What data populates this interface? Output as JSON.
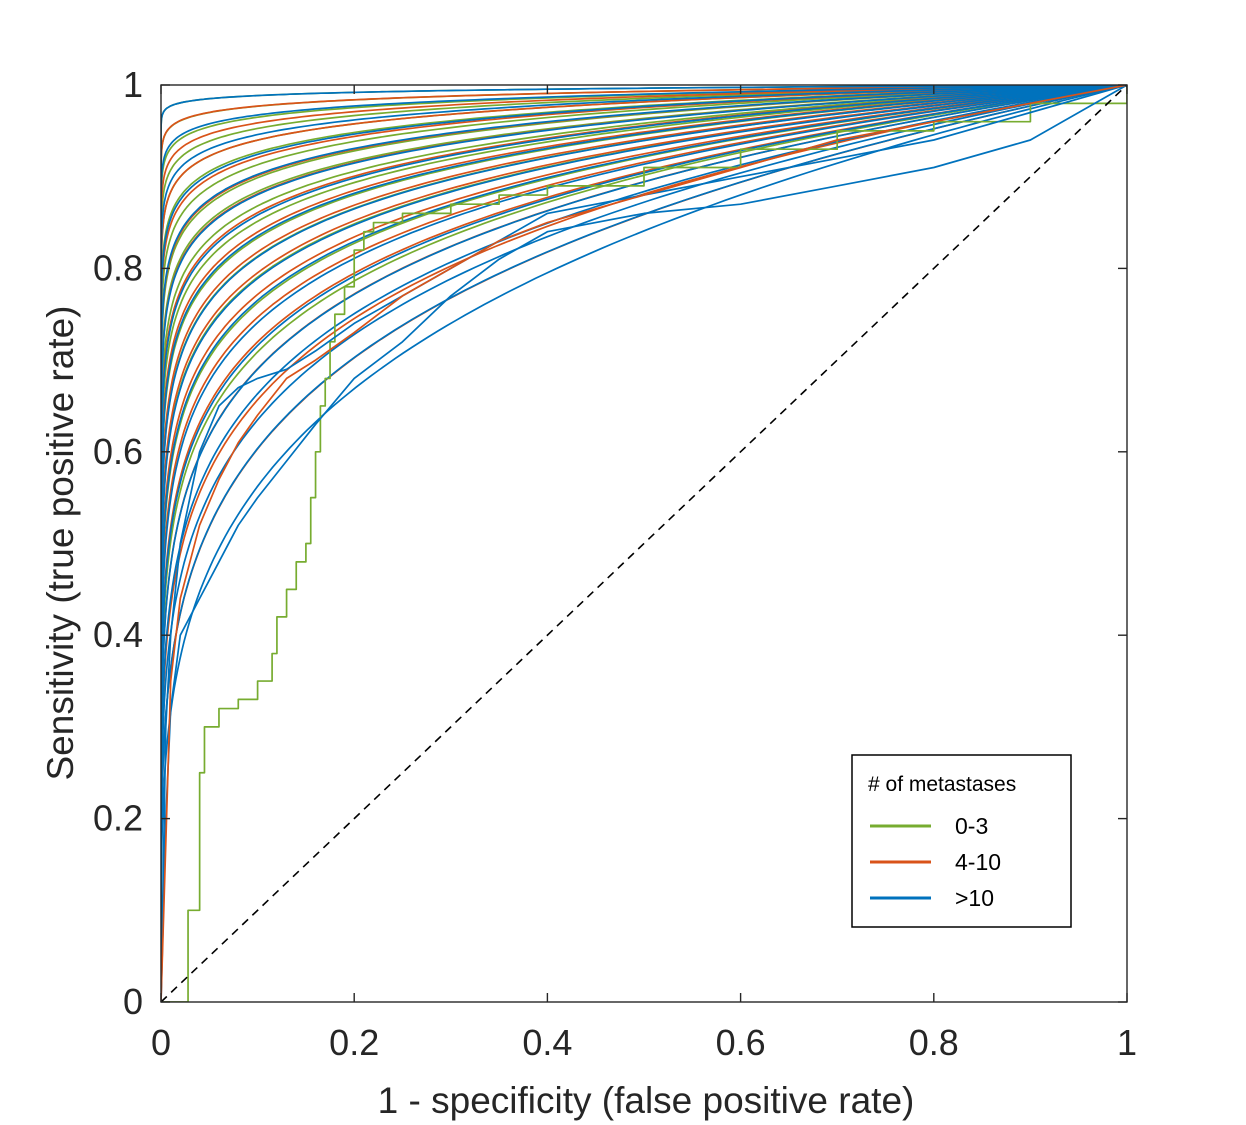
{
  "chart_data": {
    "type": "line",
    "title": "",
    "xlabel": "1 - specificity (false positive rate)",
    "ylabel": "Sensitivity (true positive rate)",
    "xlim": [
      0,
      1
    ],
    "ylim": [
      0,
      1
    ],
    "xticks": [
      0,
      0.2,
      0.4,
      0.6,
      0.8,
      1
    ],
    "yticks": [
      0,
      0.2,
      0.4,
      0.6,
      0.8,
      1
    ],
    "xtick_labels": [
      "0",
      "0.2",
      "0.4",
      "0.6",
      "0.8",
      "1"
    ],
    "ytick_labels": [
      "0",
      "0.2",
      "0.4",
      "0.6",
      "0.8",
      "1"
    ],
    "grid": false,
    "reference_line": {
      "style": "dashed",
      "color": "#000000",
      "from": [
        0,
        0
      ],
      "to": [
        1,
        1
      ]
    },
    "legend": {
      "title": "# of metastases",
      "position": "bottom-right",
      "entries": [
        {
          "label": "0-3",
          "color": "#77AC30"
        },
        {
          "label": "4-10",
          "color": "#D95319"
        },
        {
          "label": ">10",
          "color": "#0072BD"
        }
      ]
    },
    "groups": [
      {
        "name": "0-3",
        "color": "#77AC30",
        "curve_count": 16,
        "auc_range": [
          0.87,
          0.995
        ]
      },
      {
        "name": "4-10",
        "color": "#D95319",
        "curve_count": 16,
        "auc_range": [
          0.82,
          0.99
        ]
      },
      {
        "name": ">10",
        "color": "#0072BD",
        "curve_count": 18,
        "auc_range": [
          0.8,
          0.995
        ]
      }
    ],
    "series": [
      {
        "name": "0-3 (staircase)",
        "group": "0-3",
        "step": true,
        "x": [
          0,
          0.025,
          0.028,
          0.04,
          0.045,
          0.06,
          0.08,
          0.1,
          0.115,
          0.12,
          0.13,
          0.14,
          0.15,
          0.155,
          0.16,
          0.165,
          0.17,
          0.175,
          0.18,
          0.19,
          0.2,
          0.21,
          0.22,
          0.25,
          0.3,
          0.35,
          0.4,
          0.5,
          0.6,
          0.7,
          0.8,
          0.9,
          1
        ],
        "y": [
          0,
          0,
          0.1,
          0.25,
          0.3,
          0.32,
          0.33,
          0.35,
          0.38,
          0.42,
          0.45,
          0.48,
          0.5,
          0.55,
          0.6,
          0.65,
          0.68,
          0.72,
          0.75,
          0.78,
          0.82,
          0.84,
          0.85,
          0.86,
          0.87,
          0.88,
          0.89,
          0.91,
          0.93,
          0.95,
          0.96,
          0.98,
          1
        ]
      },
      {
        "name": ">10 (low curve)",
        "group": ">10",
        "x": [
          0,
          0.005,
          0.01,
          0.02,
          0.04,
          0.06,
          0.08,
          0.1,
          0.13,
          0.16,
          0.2,
          0.25,
          0.3,
          0.35,
          0.4,
          0.5,
          0.6,
          0.7,
          0.8,
          0.9,
          1
        ],
        "y": [
          0,
          0.2,
          0.32,
          0.4,
          0.44,
          0.48,
          0.52,
          0.55,
          0.59,
          0.63,
          0.68,
          0.72,
          0.77,
          0.81,
          0.84,
          0.86,
          0.87,
          0.89,
          0.91,
          0.94,
          1
        ]
      },
      {
        "name": ">10 (mid curve)",
        "group": ">10",
        "x": [
          0,
          0.005,
          0.01,
          0.02,
          0.04,
          0.06,
          0.08,
          0.1,
          0.13,
          0.16,
          0.2,
          0.25,
          0.3,
          0.35,
          0.4,
          0.5,
          0.6,
          0.7,
          0.8,
          0.9,
          1
        ],
        "y": [
          0,
          0.3,
          0.4,
          0.5,
          0.6,
          0.65,
          0.67,
          0.68,
          0.69,
          0.71,
          0.74,
          0.77,
          0.8,
          0.83,
          0.86,
          0.88,
          0.9,
          0.92,
          0.94,
          0.97,
          1
        ]
      },
      {
        "name": "4-10 (low curve)",
        "group": "4-10",
        "x": [
          0,
          0.01,
          0.02,
          0.04,
          0.06,
          0.08,
          0.1,
          0.13,
          0.16,
          0.2,
          0.25,
          0.3,
          0.35,
          0.4,
          0.5,
          0.6,
          0.7,
          0.8,
          0.9,
          1
        ],
        "y": [
          0,
          0.35,
          0.44,
          0.52,
          0.57,
          0.61,
          0.64,
          0.68,
          0.7,
          0.73,
          0.77,
          0.8,
          0.83,
          0.85,
          0.88,
          0.91,
          0.94,
          0.96,
          0.98,
          1
        ]
      }
    ]
  }
}
